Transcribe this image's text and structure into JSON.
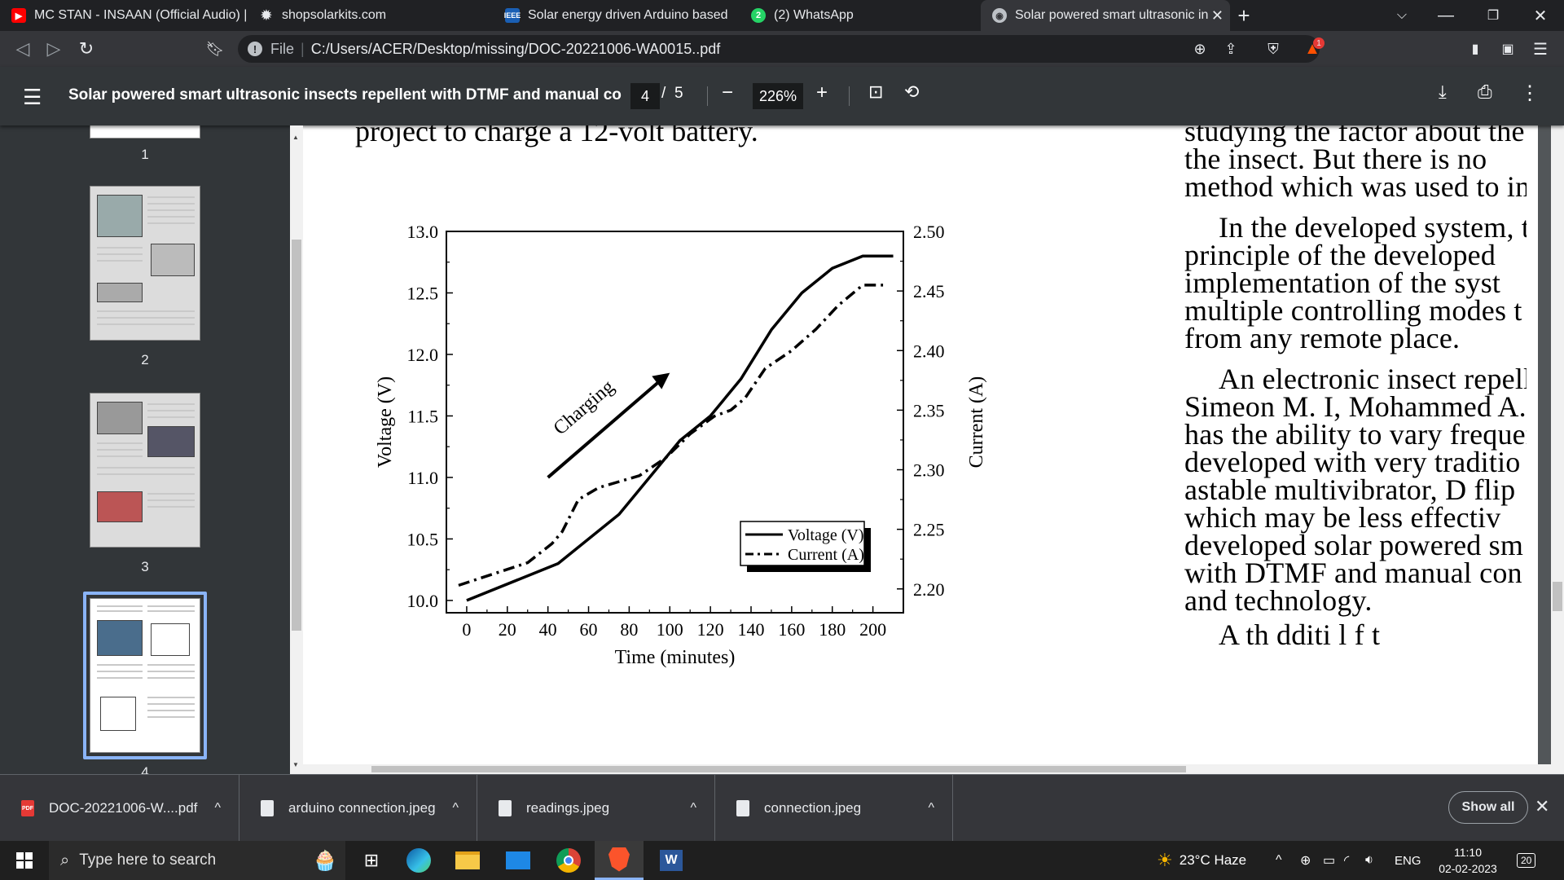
{
  "tabs": [
    {
      "title": "MC STAN - INSAAN (Official Audio) | I",
      "icon": "youtube-icon",
      "color": "#ff0000"
    },
    {
      "title": "shopsolarkits.com",
      "icon": "gear-icon",
      "color": "#e8eaed"
    },
    {
      "title": "Solar energy driven Arduino based sm",
      "icon": "ieee-icon",
      "color": "#1a5fb4"
    },
    {
      "title": "(2) WhatsApp",
      "icon": "whatsapp-icon",
      "color": "#25d366",
      "badge": "2"
    },
    {
      "title": "Solar powered smart ultrasonic in",
      "icon": "globe-icon",
      "color": "#bdc1c6"
    }
  ],
  "address": {
    "label": "File",
    "url": "C:/Users/ACER/Desktop/missing/DOC-20221006-WA0015..pdf",
    "brave_badge": "1"
  },
  "pdf": {
    "title": "Solar powered smart ultrasonic insects repellent with DTMF and manual co...",
    "page_current": "4",
    "page_sep": "/",
    "page_total": "5",
    "zoom": "226%"
  },
  "thumbnails": [
    {
      "num": "1"
    },
    {
      "num": "2"
    },
    {
      "num": "3"
    },
    {
      "num": "4"
    }
  ],
  "document": {
    "top_line": "project to charge a 12-volt battery.",
    "right_col": [
      "studying the factor about the",
      "the insect. But there is no",
      "method which was used to im",
      "In the developed system, t",
      "principle of the developed",
      "implementation of the syst",
      "multiple controlling modes t",
      "from any remote place.",
      "An electronic insect repell",
      "Simeon M. I, Mohammed A.S",
      "has the ability to vary frequen",
      "developed with very traditio",
      "astable multivibrator, D flip",
      "which may be less effectiv",
      "developed solar powered sm",
      "with DTMF and manual con",
      "and technology.",
      "A   th          dditi     l f   t"
    ]
  },
  "chart_data": {
    "type": "line",
    "xlabel": "Time (minutes)",
    "ylabel": "Voltage (V)",
    "y2label": "Current (A)",
    "xlim": [
      -10,
      215
    ],
    "ylim": [
      9.9,
      13.0
    ],
    "y2lim": [
      2.18,
      2.5
    ],
    "xticks": [
      "0",
      "20",
      "40",
      "60",
      "80",
      "100",
      "120",
      "140",
      "160",
      "180",
      "200"
    ],
    "yticks": [
      "10.0",
      "10.5",
      "11.0",
      "11.5",
      "12.0",
      "12.5",
      "13.0"
    ],
    "y2ticks": [
      "2.20",
      "2.25",
      "2.30",
      "2.35",
      "2.40",
      "2.45",
      "2.50"
    ],
    "annotation": "Charging",
    "legend_position": "bottom-right",
    "series": [
      {
        "name": "Voltage (V)",
        "axis": "left",
        "style": "solid",
        "x": [
          0,
          45,
          75,
          105,
          120,
          135,
          150,
          165,
          180,
          195,
          210
        ],
        "y": [
          10.0,
          10.3,
          10.7,
          11.3,
          11.5,
          11.8,
          12.2,
          12.5,
          12.7,
          12.8,
          12.8
        ]
      },
      {
        "name": "Current (A)",
        "axis": "right",
        "style": "dashdot",
        "x": [
          -4,
          30,
          42,
          47,
          55,
          65,
          75,
          85,
          98,
          110,
          122,
          130,
          137,
          147,
          160,
          172,
          183,
          195,
          205
        ],
        "y": [
          2.203,
          2.222,
          2.238,
          2.248,
          2.275,
          2.285,
          2.29,
          2.295,
          2.31,
          2.33,
          2.345,
          2.35,
          2.36,
          2.385,
          2.4,
          2.418,
          2.438,
          2.455,
          2.455
        ]
      }
    ]
  },
  "downloads": [
    {
      "name": "DOC-20221006-W....pdf",
      "type": "pdf"
    },
    {
      "name": "arduino connection.jpeg",
      "type": "img"
    },
    {
      "name": "readings.jpeg",
      "type": "img"
    },
    {
      "name": "connection.jpeg",
      "type": "img"
    }
  ],
  "downloads_showall": "Show all",
  "taskbar": {
    "search_placeholder": "Type here to search",
    "weather": "23°C  Haze",
    "lang": "ENG",
    "time": "11:10",
    "date": "02-02-2023",
    "notif": "20"
  }
}
